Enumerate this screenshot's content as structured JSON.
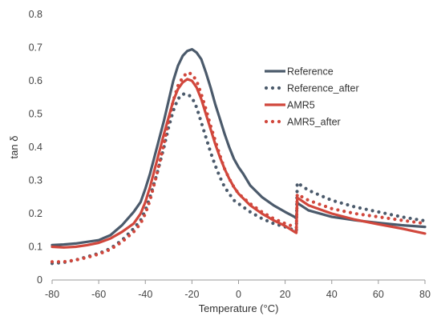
{
  "chart_data": {
    "type": "line",
    "title": "",
    "xlabel": "Temperature (°C)",
    "ylabel": "tan δ",
    "xlim": [
      -80,
      80
    ],
    "ylim": [
      0,
      0.8
    ],
    "x_ticks": [
      "-80",
      "-60",
      "-40",
      "-20",
      "0",
      "20",
      "40",
      "60",
      "80"
    ],
    "y_ticks": [
      "0",
      "0.1",
      "0.2",
      "0.3",
      "0.4",
      "0.5",
      "0.6",
      "0.7",
      "0.8"
    ],
    "grid": false,
    "legend_position": "right",
    "series": [
      {
        "name": "Reference",
        "color": "#4b5a6b",
        "style": "solid",
        "points": [
          [
            -80,
            0.105
          ],
          [
            -75,
            0.107
          ],
          [
            -70,
            0.11
          ],
          [
            -65,
            0.115
          ],
          [
            -60,
            0.12
          ],
          [
            -55,
            0.135
          ],
          [
            -50,
            0.165
          ],
          [
            -45,
            0.205
          ],
          [
            -42,
            0.235
          ],
          [
            -40,
            0.275
          ],
          [
            -38,
            0.32
          ],
          [
            -35,
            0.4
          ],
          [
            -32,
            0.48
          ],
          [
            -30,
            0.54
          ],
          [
            -28,
            0.6
          ],
          [
            -26,
            0.645
          ],
          [
            -24,
            0.675
          ],
          [
            -22,
            0.69
          ],
          [
            -20,
            0.695
          ],
          [
            -18,
            0.685
          ],
          [
            -16,
            0.665
          ],
          [
            -14,
            0.625
          ],
          [
            -12,
            0.58
          ],
          [
            -10,
            0.53
          ],
          [
            -8,
            0.485
          ],
          [
            -6,
            0.44
          ],
          [
            -4,
            0.4
          ],
          [
            -2,
            0.365
          ],
          [
            0,
            0.34
          ],
          [
            2,
            0.32
          ],
          [
            5,
            0.285
          ],
          [
            10,
            0.25
          ],
          [
            15,
            0.225
          ],
          [
            20,
            0.205
          ],
          [
            24,
            0.19
          ],
          [
            24.8,
            0.185
          ],
          [
            25.2,
            0.232
          ],
          [
            30,
            0.21
          ],
          [
            40,
            0.19
          ],
          [
            50,
            0.18
          ],
          [
            60,
            0.172
          ],
          [
            70,
            0.165
          ],
          [
            80,
            0.16
          ]
        ]
      },
      {
        "name": "Reference_after",
        "color": "#4b5a6b",
        "style": "dotted",
        "points": [
          [
            -80,
            0.05
          ],
          [
            -75,
            0.053
          ],
          [
            -70,
            0.06
          ],
          [
            -65,
            0.07
          ],
          [
            -60,
            0.08
          ],
          [
            -55,
            0.095
          ],
          [
            -50,
            0.12
          ],
          [
            -45,
            0.155
          ],
          [
            -42,
            0.18
          ],
          [
            -40,
            0.21
          ],
          [
            -38,
            0.25
          ],
          [
            -35,
            0.32
          ],
          [
            -32,
            0.4
          ],
          [
            -30,
            0.46
          ],
          [
            -28,
            0.51
          ],
          [
            -26,
            0.545
          ],
          [
            -24,
            0.56
          ],
          [
            -22,
            0.56
          ],
          [
            -20,
            0.55
          ],
          [
            -18,
            0.52
          ],
          [
            -16,
            0.475
          ],
          [
            -14,
            0.43
          ],
          [
            -12,
            0.385
          ],
          [
            -10,
            0.345
          ],
          [
            -8,
            0.31
          ],
          [
            -6,
            0.28
          ],
          [
            -4,
            0.26
          ],
          [
            -2,
            0.24
          ],
          [
            0,
            0.23
          ],
          [
            5,
            0.205
          ],
          [
            10,
            0.185
          ],
          [
            15,
            0.17
          ],
          [
            20,
            0.16
          ],
          [
            24,
            0.15
          ],
          [
            24.8,
            0.148
          ],
          [
            25.2,
            0.293
          ],
          [
            30,
            0.27
          ],
          [
            40,
            0.24
          ],
          [
            50,
            0.22
          ],
          [
            60,
            0.205
          ],
          [
            70,
            0.19
          ],
          [
            80,
            0.178
          ]
        ]
      },
      {
        "name": "AMR5",
        "color": "#d1473c",
        "style": "solid",
        "points": [
          [
            -80,
            0.1
          ],
          [
            -75,
            0.098
          ],
          [
            -70,
            0.1
          ],
          [
            -65,
            0.105
          ],
          [
            -60,
            0.112
          ],
          [
            -55,
            0.125
          ],
          [
            -50,
            0.145
          ],
          [
            -45,
            0.17
          ],
          [
            -42,
            0.2
          ],
          [
            -40,
            0.235
          ],
          [
            -38,
            0.28
          ],
          [
            -35,
            0.36
          ],
          [
            -32,
            0.44
          ],
          [
            -30,
            0.49
          ],
          [
            -28,
            0.54
          ],
          [
            -26,
            0.575
          ],
          [
            -24,
            0.595
          ],
          [
            -22,
            0.605
          ],
          [
            -20,
            0.6
          ],
          [
            -18,
            0.58
          ],
          [
            -16,
            0.545
          ],
          [
            -14,
            0.5
          ],
          [
            -12,
            0.455
          ],
          [
            -10,
            0.41
          ],
          [
            -8,
            0.37
          ],
          [
            -6,
            0.335
          ],
          [
            -4,
            0.305
          ],
          [
            -2,
            0.28
          ],
          [
            0,
            0.26
          ],
          [
            5,
            0.225
          ],
          [
            10,
            0.2
          ],
          [
            15,
            0.18
          ],
          [
            20,
            0.163
          ],
          [
            24,
            0.145
          ],
          [
            24.8,
            0.142
          ],
          [
            25.2,
            0.248
          ],
          [
            30,
            0.225
          ],
          [
            40,
            0.2
          ],
          [
            50,
            0.182
          ],
          [
            60,
            0.168
          ],
          [
            70,
            0.155
          ],
          [
            80,
            0.14
          ]
        ]
      },
      {
        "name": "AMR5_after",
        "color": "#d1473c",
        "style": "dotted",
        "points": [
          [
            -80,
            0.055
          ],
          [
            -75,
            0.055
          ],
          [
            -70,
            0.06
          ],
          [
            -65,
            0.068
          ],
          [
            -60,
            0.078
          ],
          [
            -55,
            0.092
          ],
          [
            -50,
            0.115
          ],
          [
            -45,
            0.145
          ],
          [
            -42,
            0.17
          ],
          [
            -40,
            0.2
          ],
          [
            -38,
            0.24
          ],
          [
            -35,
            0.32
          ],
          [
            -32,
            0.41
          ],
          [
            -30,
            0.48
          ],
          [
            -28,
            0.54
          ],
          [
            -26,
            0.585
          ],
          [
            -24,
            0.61
          ],
          [
            -22,
            0.625
          ],
          [
            -20,
            0.62
          ],
          [
            -18,
            0.6
          ],
          [
            -16,
            0.56
          ],
          [
            -14,
            0.515
          ],
          [
            -12,
            0.465
          ],
          [
            -10,
            0.42
          ],
          [
            -8,
            0.375
          ],
          [
            -6,
            0.335
          ],
          [
            -4,
            0.305
          ],
          [
            -2,
            0.28
          ],
          [
            0,
            0.26
          ],
          [
            5,
            0.23
          ],
          [
            10,
            0.205
          ],
          [
            15,
            0.185
          ],
          [
            20,
            0.17
          ],
          [
            24,
            0.16
          ],
          [
            24.8,
            0.158
          ],
          [
            25.2,
            0.258
          ],
          [
            30,
            0.24
          ],
          [
            40,
            0.215
          ],
          [
            50,
            0.2
          ],
          [
            60,
            0.19
          ],
          [
            70,
            0.18
          ],
          [
            80,
            0.17
          ]
        ]
      }
    ]
  }
}
